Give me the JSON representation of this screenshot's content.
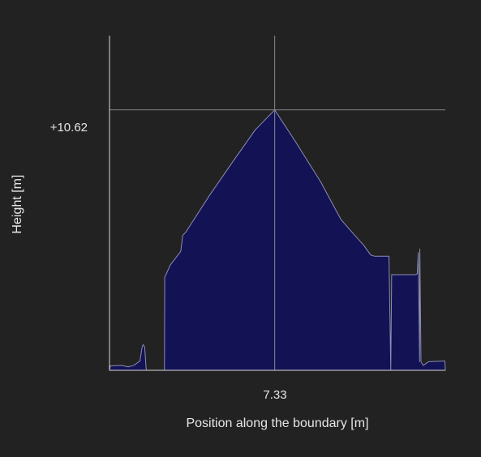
{
  "colors": {
    "background": "#222222",
    "fill": "#121255",
    "outline": "#8c8cb4",
    "axis": "#d8d8d8",
    "crosshair": "#8a8a8a",
    "text": "#e6e6e6"
  },
  "chart_data": {
    "type": "area",
    "title": "",
    "xlabel": "Position along the boundary [m]",
    "ylabel": "Height [m]",
    "xlim": [
      0,
      14.9
    ],
    "ylim": [
      0,
      13.65
    ],
    "grid": false,
    "marker": {
      "x": 7.33,
      "y": 10.62,
      "x_label": "7.33",
      "y_label": "+10.62"
    },
    "series": [
      {
        "x": [
          0,
          0.04,
          0.54,
          0.83,
          1.08,
          1.35,
          1.44,
          1.49,
          1.56,
          1.62,
          1.63,
          2.44,
          2.45,
          2.48,
          2.7,
          3.16,
          3.25,
          3.4,
          3.5,
          4.45,
          5.48,
          6.47,
          7.33,
          8.27,
          9.36,
          10.27,
          10.84,
          11.28,
          11.59,
          11.77,
          12.4,
          12.48,
          12.52,
          13.58,
          13.66,
          13.7,
          13.76,
          13.77,
          13.82,
          13.92,
          14.16,
          14.88,
          14.9
        ],
        "y": [
          0,
          0.18,
          0.2,
          0.14,
          0.2,
          0.38,
          0.9,
          1.05,
          0.95,
          0.15,
          0,
          0,
          3.8,
          3.85,
          4.3,
          4.85,
          5.5,
          5.65,
          5.8,
          7.15,
          8.52,
          9.81,
          10.62,
          9.3,
          7.7,
          6.15,
          5.55,
          5.1,
          4.7,
          4.65,
          4.65,
          0,
          3.9,
          3.9,
          3.94,
          4.8,
          0.35,
          4.95,
          0.35,
          0.2,
          0.35,
          0.38,
          0
        ]
      }
    ]
  }
}
